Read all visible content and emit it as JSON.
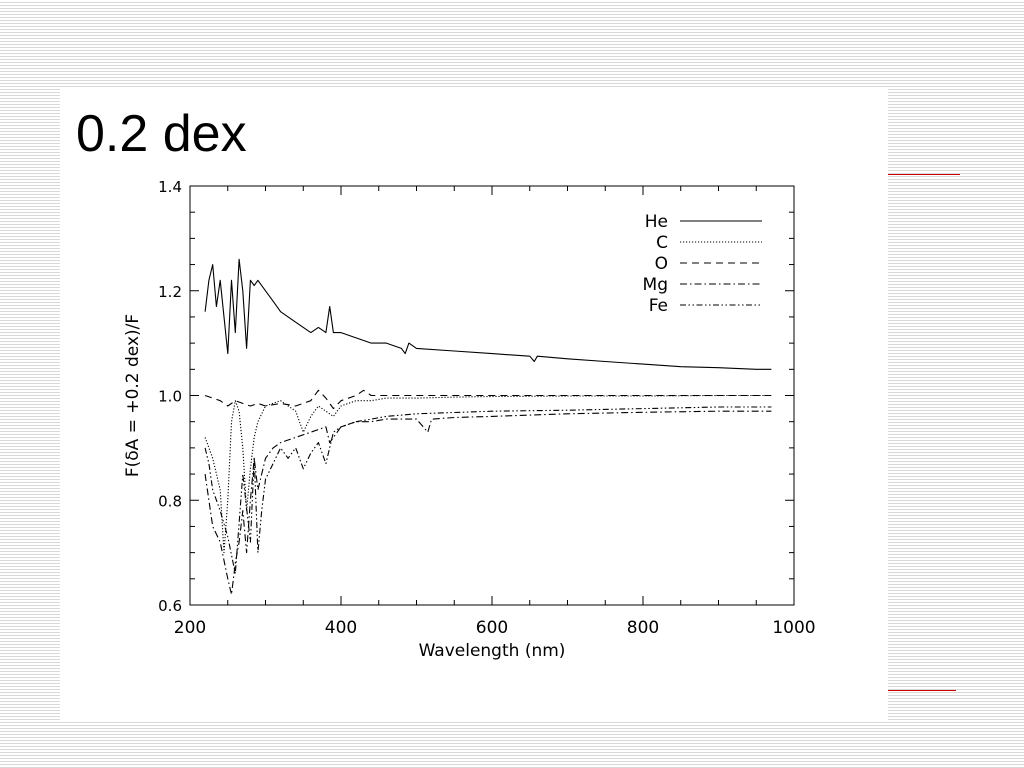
{
  "slide": {
    "title": "0.2 dex",
    "accent_color": "#cc0000"
  },
  "chart_data": {
    "type": "line",
    "title": "",
    "xlabel": "Wavelength (nm)",
    "ylabel": "F(δA = +0.2 dex)/F",
    "xlim": [
      200,
      1000
    ],
    "ylim": [
      0.6,
      1.4
    ],
    "x_ticks": [
      "200",
      "400",
      "600",
      "800",
      "1000"
    ],
    "y_ticks": [
      "0.6",
      "0.8",
      "1.0",
      "1.2",
      "1.4"
    ],
    "legend_position": "top-right",
    "grid": false,
    "series": [
      {
        "name": "He",
        "dash": "solid",
        "x": [
          220,
          225,
          230,
          235,
          240,
          245,
          250,
          255,
          260,
          265,
          270,
          275,
          280,
          285,
          290,
          300,
          310,
          320,
          330,
          340,
          350,
          360,
          370,
          380,
          385,
          390,
          400,
          420,
          440,
          460,
          480,
          485,
          490,
          500,
          550,
          600,
          650,
          656,
          660,
          700,
          750,
          800,
          850,
          900,
          950,
          970
        ],
        "y": [
          1.16,
          1.22,
          1.25,
          1.17,
          1.22,
          1.15,
          1.08,
          1.22,
          1.12,
          1.26,
          1.2,
          1.09,
          1.22,
          1.21,
          1.22,
          1.2,
          1.18,
          1.16,
          1.15,
          1.14,
          1.13,
          1.12,
          1.13,
          1.12,
          1.17,
          1.12,
          1.12,
          1.11,
          1.1,
          1.1,
          1.09,
          1.08,
          1.1,
          1.09,
          1.085,
          1.08,
          1.075,
          1.065,
          1.075,
          1.07,
          1.065,
          1.06,
          1.055,
          1.053,
          1.05,
          1.05
        ]
      },
      {
        "name": "C",
        "dash": "dotted",
        "x": [
          220,
          230,
          240,
          245,
          250,
          255,
          260,
          265,
          270,
          275,
          280,
          285,
          290,
          300,
          320,
          340,
          350,
          360,
          370,
          380,
          390,
          400,
          420,
          440,
          460,
          500,
          550,
          600,
          700,
          800,
          900,
          970
        ],
        "y": [
          0.92,
          0.88,
          0.82,
          0.7,
          0.8,
          0.95,
          0.99,
          0.97,
          0.9,
          0.78,
          0.86,
          0.92,
          0.95,
          0.98,
          0.99,
          0.97,
          0.93,
          0.96,
          0.98,
          0.97,
          0.96,
          0.98,
          0.99,
          0.99,
          0.995,
          0.995,
          0.997,
          0.998,
          0.999,
          0.999,
          1.0,
          1.0
        ]
      },
      {
        "name": "O",
        "dash": "dashed",
        "x": [
          220,
          230,
          240,
          250,
          260,
          270,
          280,
          290,
          300,
          320,
          340,
          360,
          370,
          380,
          390,
          400,
          420,
          430,
          440,
          460,
          500,
          600,
          700,
          800,
          900,
          970
        ],
        "y": [
          1.0,
          0.995,
          0.99,
          0.98,
          0.99,
          0.985,
          0.98,
          0.985,
          0.98,
          0.985,
          0.98,
          0.99,
          1.01,
          0.995,
          0.975,
          0.99,
          1.0,
          1.01,
          1.0,
          1.0,
          1.0,
          1.0,
          1.0,
          1.0,
          1.0,
          1.0
        ]
      },
      {
        "name": "Mg",
        "dash": "dashdot",
        "x": [
          220,
          230,
          240,
          250,
          255,
          260,
          265,
          270,
          275,
          280,
          285,
          290,
          300,
          310,
          320,
          340,
          360,
          380,
          385,
          400,
          420,
          440,
          460,
          500,
          515,
          520,
          550,
          600,
          700,
          800,
          900,
          970
        ],
        "y": [
          0.85,
          0.75,
          0.72,
          0.65,
          0.62,
          0.68,
          0.72,
          0.78,
          0.7,
          0.8,
          0.88,
          0.82,
          0.88,
          0.9,
          0.91,
          0.92,
          0.93,
          0.94,
          0.91,
          0.94,
          0.95,
          0.95,
          0.955,
          0.955,
          0.93,
          0.955,
          0.958,
          0.96,
          0.965,
          0.968,
          0.97,
          0.97
        ]
      },
      {
        "name": "Fe",
        "dash": "dashdotdot",
        "x": [
          220,
          225,
          230,
          240,
          250,
          260,
          270,
          280,
          285,
          290,
          295,
          300,
          310,
          320,
          330,
          340,
          350,
          360,
          370,
          380,
          390,
          400,
          420,
          440,
          460,
          500,
          600,
          700,
          800,
          900,
          970
        ],
        "y": [
          0.9,
          0.87,
          0.82,
          0.78,
          0.73,
          0.66,
          0.85,
          0.72,
          0.88,
          0.7,
          0.78,
          0.84,
          0.87,
          0.9,
          0.88,
          0.9,
          0.86,
          0.89,
          0.91,
          0.87,
          0.93,
          0.94,
          0.95,
          0.955,
          0.96,
          0.965,
          0.97,
          0.972,
          0.975,
          0.978,
          0.978
        ]
      }
    ]
  }
}
